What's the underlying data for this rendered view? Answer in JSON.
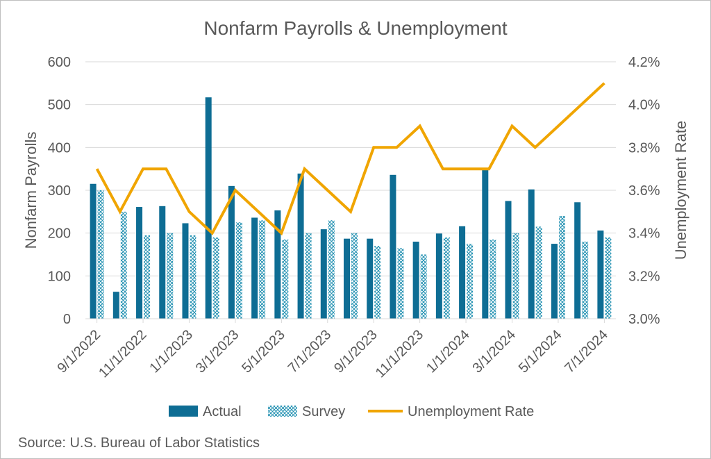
{
  "chart_data": {
    "type": "bar+line",
    "title": "Nonfarm Payrolls & Unemployment",
    "ylabel_left": "Nonfarm Payrolls",
    "ylabel_right": "Unemployment Rate",
    "ylim_left": [
      0,
      600
    ],
    "ylim_right": [
      3.0,
      4.2
    ],
    "yticks_left": [
      "0",
      "100",
      "200",
      "300",
      "400",
      "500",
      "600"
    ],
    "yticks_right": [
      "3.0%",
      "3.2%",
      "3.4%",
      "3.6%",
      "3.8%",
      "4.0%",
      "4.2%"
    ],
    "x_tick_labels": [
      "9/1/2022",
      "11/1/2022",
      "1/1/2023",
      "3/1/2023",
      "5/1/2023",
      "7/1/2023",
      "9/1/2023",
      "11/1/2023",
      "1/1/2024",
      "3/1/2024",
      "5/1/2024",
      "7/1/2024"
    ],
    "categories": [
      "9/1/2022",
      "10/1/2022",
      "11/1/2022",
      "12/1/2022",
      "1/1/2023",
      "2/1/2023",
      "3/1/2023",
      "4/1/2023",
      "5/1/2023",
      "6/1/2023",
      "7/1/2023",
      "8/1/2023",
      "9/1/2023",
      "10/1/2023",
      "11/1/2023",
      "12/1/2023",
      "1/1/2024",
      "2/1/2024",
      "3/1/2024",
      "4/1/2024",
      "5/1/2024",
      "6/1/2024",
      "7/1/2024"
    ],
    "series": [
      {
        "name": "Actual",
        "type": "bar",
        "color": "#0e6d94",
        "values": [
          315,
          63,
          261,
          263,
          223,
          517,
          310,
          236,
          253,
          339,
          209,
          187,
          187,
          336,
          180,
          199,
          216,
          350,
          275,
          302,
          175,
          272,
          206
        ]
      },
      {
        "name": "Survey",
        "type": "bar-pattern",
        "color": "#1f8fb0",
        "values": [
          300,
          250,
          195,
          200,
          195,
          190,
          225,
          230,
          185,
          200,
          230,
          200,
          170,
          165,
          150,
          190,
          175,
          185,
          200,
          215,
          240,
          180,
          190
        ]
      },
      {
        "name": "Unemployment Rate",
        "type": "line",
        "axis": "right",
        "color": "#f0a500",
        "values": [
          3.7,
          3.5,
          3.7,
          3.7,
          3.5,
          3.4,
          3.6,
          3.5,
          3.4,
          3.7,
          3.6,
          3.5,
          3.8,
          3.8,
          3.9,
          3.7,
          3.7,
          3.7,
          3.9,
          3.8,
          3.9,
          4.0,
          4.1
        ]
      }
    ],
    "legend": [
      "Actual",
      "Survey",
      "Unemployment Rate"
    ],
    "legend_position": "bottom"
  },
  "source_note": "Source: U.S. Bureau of Labor Statistics"
}
